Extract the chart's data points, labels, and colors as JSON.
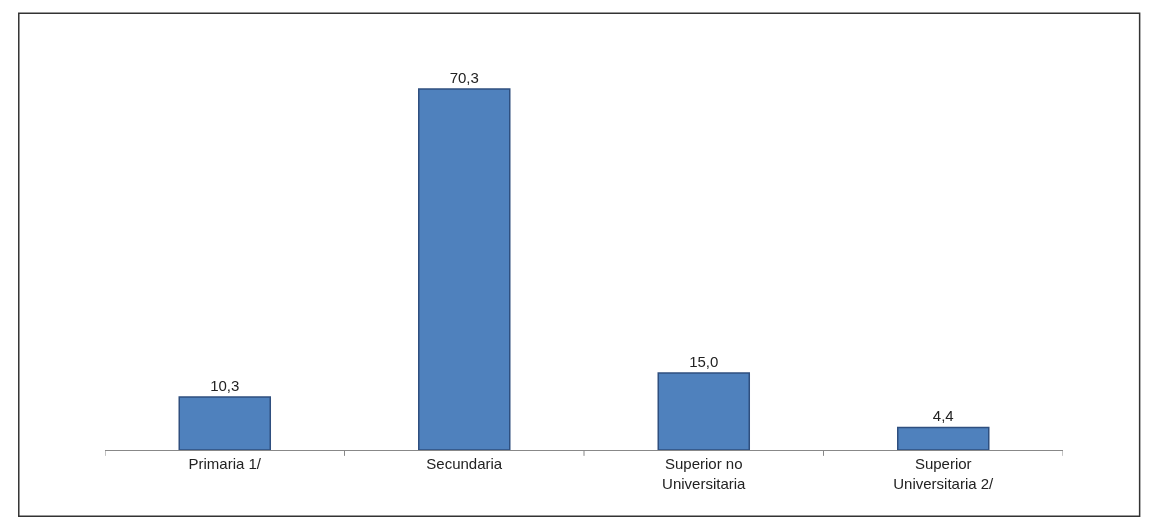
{
  "chart_data": {
    "type": "bar",
    "categories": [
      "Primaria 1/",
      "Secundaria",
      "Superior no Universitaria",
      "Superior Universitaria 2/"
    ],
    "values": [
      10.3,
      70.3,
      15.0,
      4.4
    ],
    "value_labels": [
      "10,3",
      "70,3",
      "15,0",
      "4,4"
    ],
    "color": "#4f81bd",
    "legend": false
  }
}
